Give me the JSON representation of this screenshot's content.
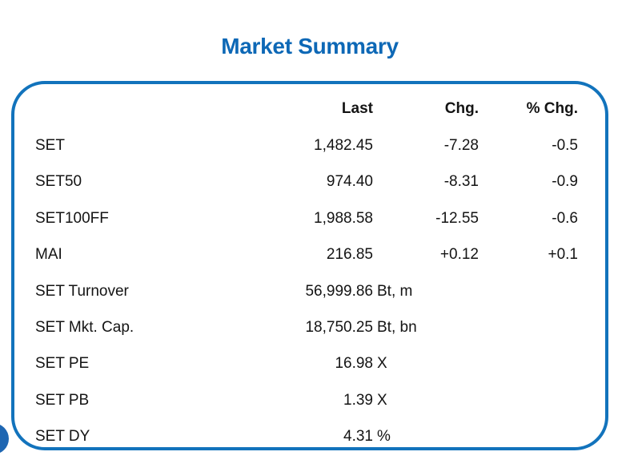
{
  "page": {
    "title": "Market Summary"
  },
  "colors": {
    "accent_blue": "#1273bc",
    "title_blue": "#0d68b6",
    "circle_blue": "#1e66b2",
    "text": "#141414"
  },
  "table": {
    "headers": [
      "Last",
      "Chg.",
      "% Chg."
    ],
    "rows": [
      {
        "label": "SET",
        "last": "1,482.45",
        "unit": "",
        "chg": "-7.28",
        "pchg": "-0.5"
      },
      {
        "label": "SET50",
        "last": "974.40",
        "unit": "",
        "chg": "-8.31",
        "pchg": "-0.9"
      },
      {
        "label": "SET100FF",
        "last": "1,988.58",
        "unit": "",
        "chg": "-12.55",
        "pchg": "-0.6"
      },
      {
        "label": "MAI",
        "last": "216.85",
        "unit": "",
        "chg": "+0.12",
        "pchg": "+0.1"
      },
      {
        "label": "SET Turnover",
        "last": "56,999.86",
        "unit": "Bt, m",
        "chg": "",
        "pchg": ""
      },
      {
        "label": "SET Mkt. Cap.",
        "last": "18,750.25",
        "unit": "Bt, bn",
        "chg": "",
        "pchg": ""
      },
      {
        "label": "SET PE",
        "last": "16.98",
        "unit": "X",
        "chg": "",
        "pchg": ""
      },
      {
        "label": "SET PB",
        "last": "1.39",
        "unit": "X",
        "chg": "",
        "pchg": ""
      },
      {
        "label": "SET DY",
        "last": "4.31",
        "unit": "%",
        "chg": "",
        "pchg": ""
      }
    ]
  },
  "decorations": {
    "corner_circle": "blue-circle-clipped-left-edge"
  }
}
